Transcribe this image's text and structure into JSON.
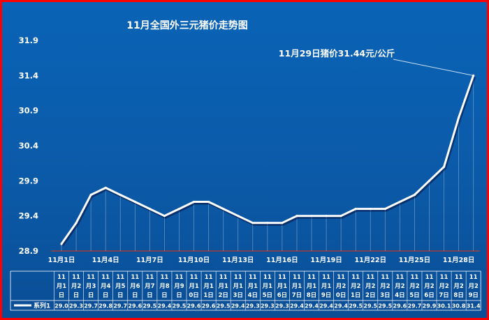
{
  "chart_data": {
    "type": "line",
    "title": "11月全国外三元猪价走势图",
    "annotation": "11月29日猪价31.44元/公斤",
    "x_ticks": [
      "11月1日",
      "11月4日",
      "11月7日",
      "11月10日",
      "11月13日",
      "11月16日",
      "11月19日",
      "11月22日",
      "11月25日",
      "11月28日"
    ],
    "y_ticks": [
      "28.9",
      "29.4",
      "29.9",
      "30.4",
      "30.9",
      "31.4",
      "31.9"
    ],
    "ylim": [
      28.9,
      31.9
    ],
    "grid": false,
    "series": [
      {
        "name": "系列1",
        "color": "#ffffff",
        "values": [
          29.0,
          29.3,
          29.7,
          29.8,
          29.7,
          29.6,
          29.5,
          29.4,
          29.5,
          29.6,
          29.6,
          29.5,
          29.4,
          29.3,
          29.3,
          29.3,
          29.4,
          29.4,
          29.4,
          29.4,
          29.5,
          29.5,
          29.5,
          29.6,
          29.7,
          29.9,
          30.1,
          30.8,
          31.4
        ]
      }
    ],
    "table": {
      "column_labels": [
        [
          "11",
          "月1",
          "日"
        ],
        [
          "11",
          "月2",
          "日"
        ],
        [
          "11",
          "月3",
          "日"
        ],
        [
          "11",
          "月4",
          "日"
        ],
        [
          "11",
          "月5",
          "日"
        ],
        [
          "11",
          "月6",
          "日"
        ],
        [
          "11",
          "月7",
          "日"
        ],
        [
          "11",
          "月8",
          "日"
        ],
        [
          "11",
          "月9",
          "日"
        ],
        [
          "11",
          "月1",
          "0日"
        ],
        [
          "11",
          "月1",
          "1日"
        ],
        [
          "11",
          "月1",
          "2日"
        ],
        [
          "11",
          "月1",
          "3日"
        ],
        [
          "11",
          "月1",
          "4日"
        ],
        [
          "11",
          "月1",
          "5日"
        ],
        [
          "11",
          "月1",
          "6日"
        ],
        [
          "11",
          "月1",
          "7日"
        ],
        [
          "11",
          "月1",
          "8日"
        ],
        [
          "11",
          "月1",
          "9日"
        ],
        [
          "11",
          "月2",
          "0日"
        ],
        [
          "11",
          "月2",
          "1日"
        ],
        [
          "11",
          "月2",
          "2日"
        ],
        [
          "11",
          "月2",
          "3日"
        ],
        [
          "11",
          "月2",
          "4日"
        ],
        [
          "11",
          "月2",
          "5日"
        ],
        [
          "11",
          "月2",
          "6日"
        ],
        [
          "11",
          "月2",
          "7日"
        ],
        [
          "11",
          "月2",
          "8日"
        ],
        [
          "11",
          "月2",
          "9日"
        ]
      ],
      "values": [
        "29.0",
        "29.3",
        "29.7",
        "29.8",
        "29.7",
        "29.6",
        "29.5",
        "29.4",
        "29.5",
        "29.6",
        "29.6",
        "29.5",
        "29.4",
        "29.3",
        "29.3",
        "29.3",
        "29.4",
        "29.4",
        "29.4",
        "29.4",
        "29.5",
        "29.5",
        "29.5",
        "29.6",
        "29.7",
        "29.9",
        "30.1",
        "30.8",
        "31.4"
      ]
    }
  },
  "colors": {
    "background": "#0b5aa8",
    "border": "#ff0000",
    "line": "#ffffff",
    "axis": "#c0392b"
  }
}
